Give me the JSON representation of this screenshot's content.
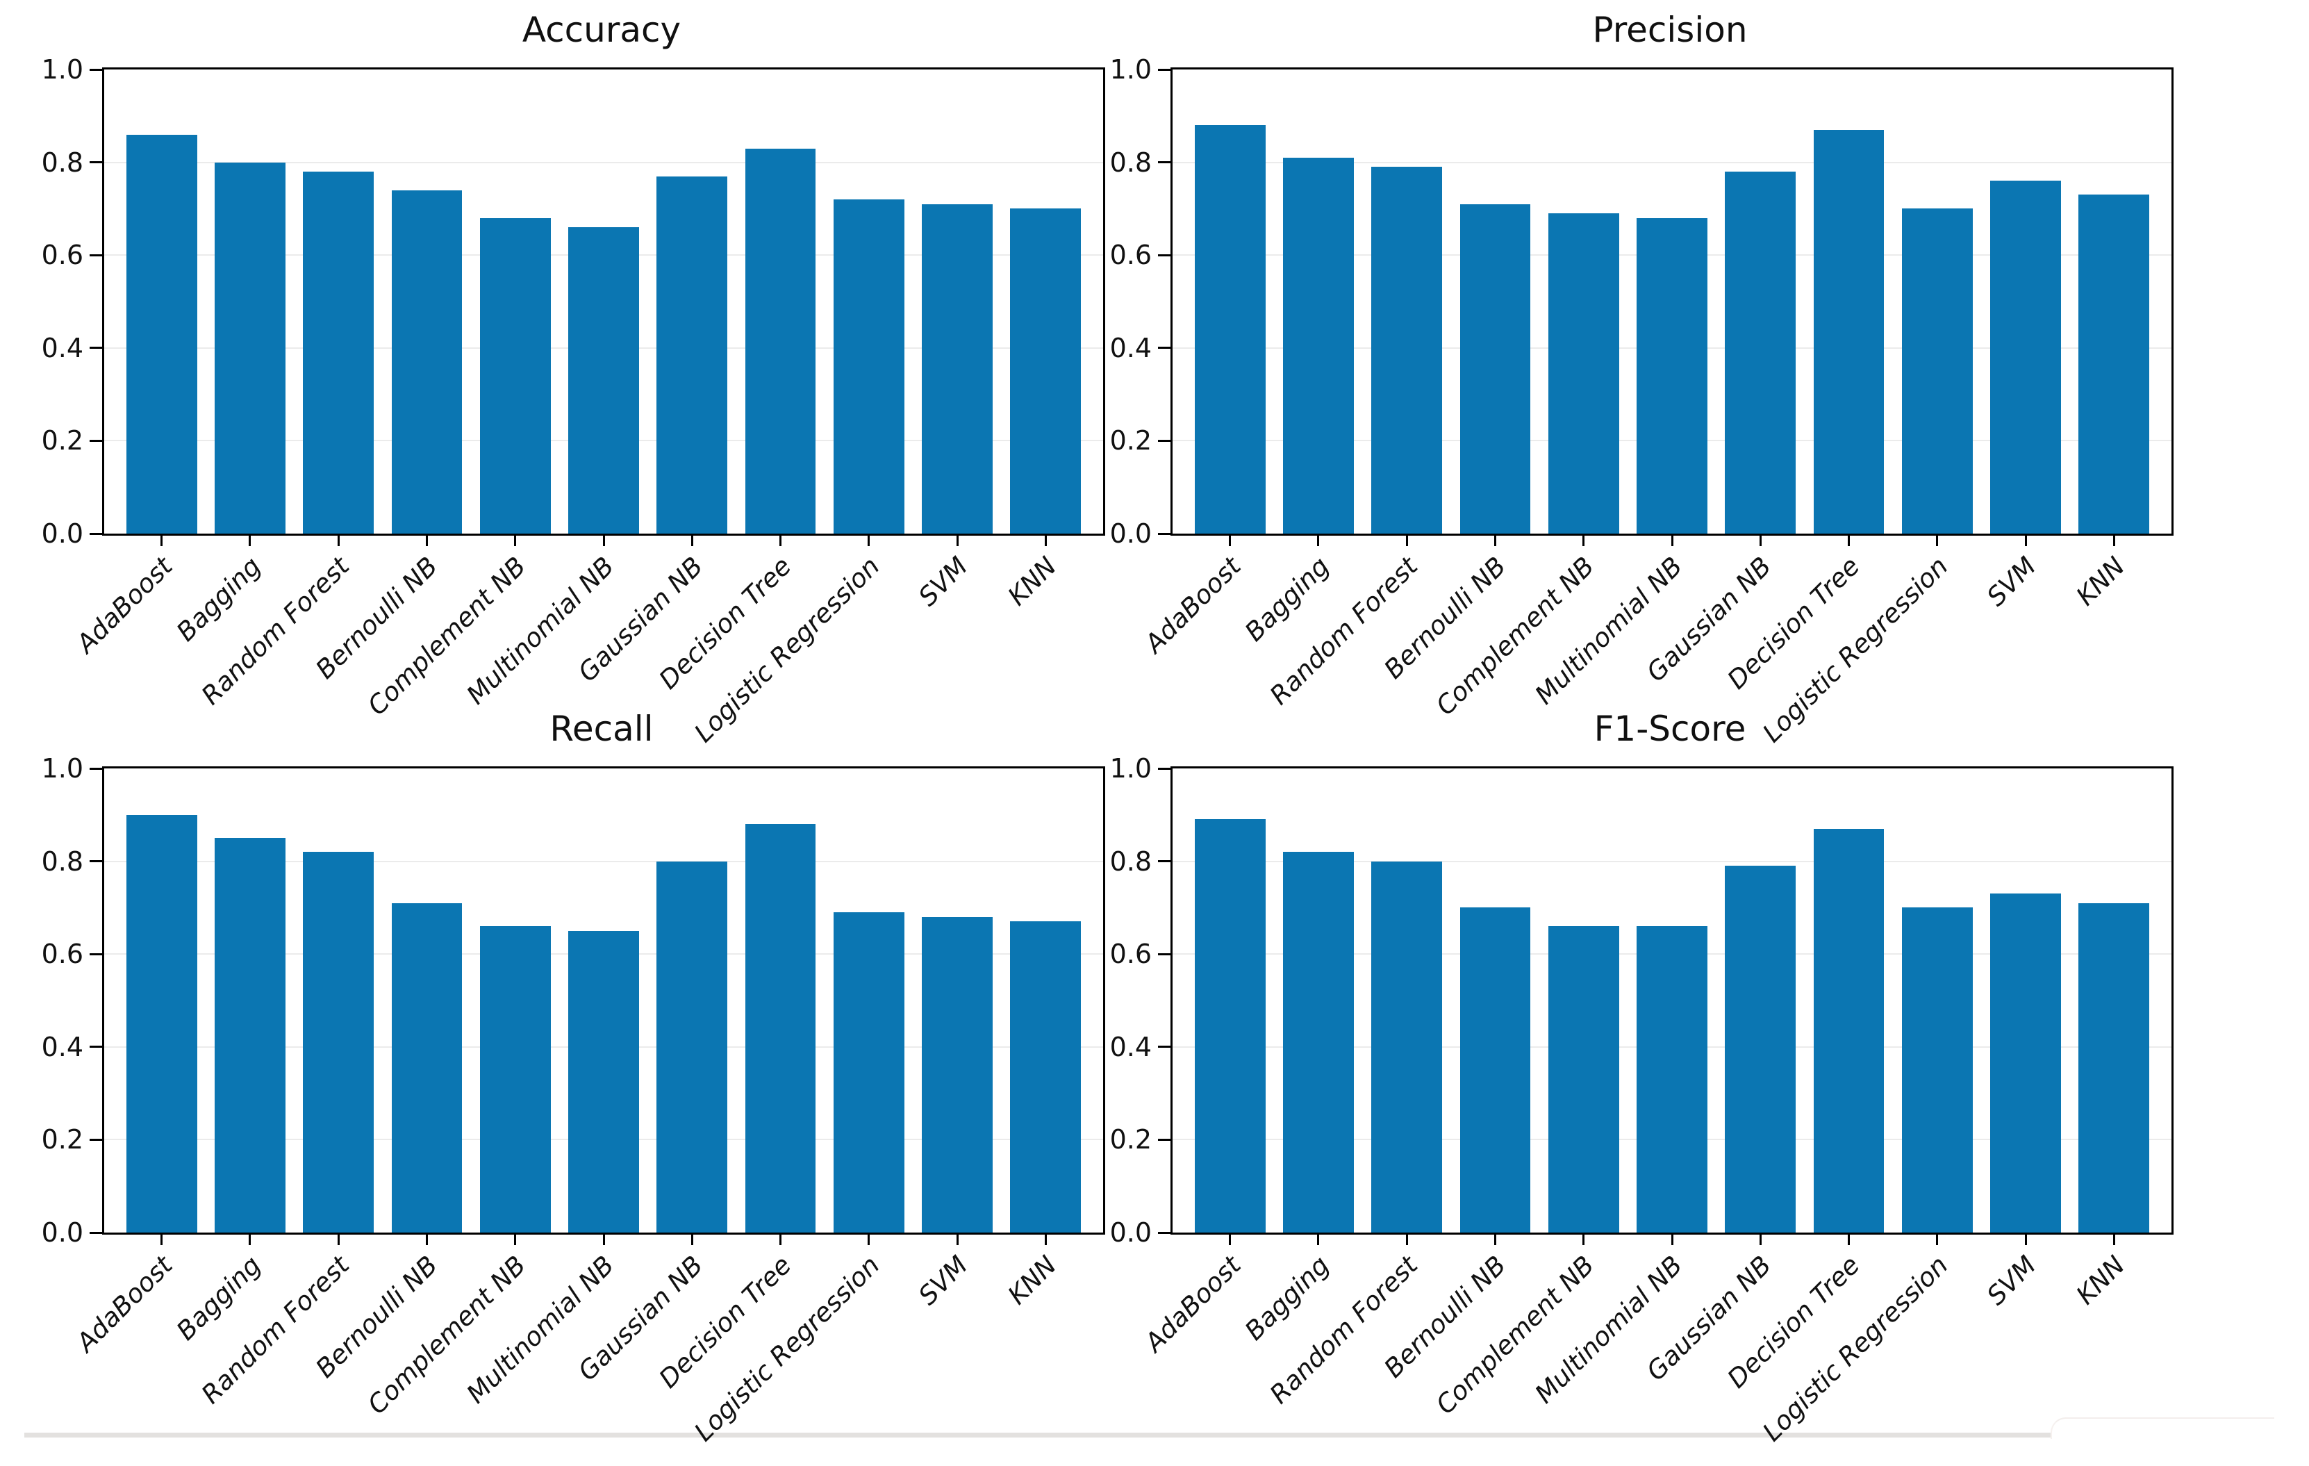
{
  "figure": {
    "background": "#ffffff",
    "description_titles": [
      "Accuracy",
      "Precision",
      "Recall",
      "F1-Score"
    ]
  },
  "colors": {
    "bar": "#0b76b2",
    "spine": "#000000",
    "gridline": "#ebebeb",
    "divider": "#e3e1df"
  },
  "chart_data": [
    {
      "type": "bar",
      "title": "Accuracy",
      "categories": [
        "AdaBoost",
        "Bagging",
        "Random Forest",
        "Bernoulli NB",
        "Complement NB",
        "Multinomial NB",
        "Gaussian NB",
        "Decision Tree",
        "Logistic Regression",
        "SVM",
        "KNN"
      ],
      "values": [
        0.86,
        0.8,
        0.78,
        0.74,
        0.68,
        0.66,
        0.77,
        0.83,
        0.72,
        0.71,
        0.7
      ],
      "xlabel": "",
      "ylabel": "",
      "ylim": [
        0.0,
        1.0
      ],
      "ytick_labels": [
        "0.0",
        "0.2",
        "0.4",
        "0.6",
        "0.8",
        "1.0"
      ],
      "grid": true,
      "legend": "none",
      "bar_color": "#0b76b2"
    },
    {
      "type": "bar",
      "title": "Precision",
      "categories": [
        "AdaBoost",
        "Bagging",
        "Random Forest",
        "Bernoulli NB",
        "Complement NB",
        "Multinomial NB",
        "Gaussian NB",
        "Decision Tree",
        "Logistic Regression",
        "SVM",
        "KNN"
      ],
      "values": [
        0.88,
        0.81,
        0.79,
        0.71,
        0.69,
        0.68,
        0.78,
        0.87,
        0.7,
        0.76,
        0.73
      ],
      "xlabel": "",
      "ylabel": "",
      "ylim": [
        0.0,
        1.0
      ],
      "ytick_labels": [
        "0.0",
        "0.2",
        "0.4",
        "0.6",
        "0.8",
        "1.0"
      ],
      "grid": true,
      "legend": "none",
      "bar_color": "#0b76b2"
    },
    {
      "type": "bar",
      "title": "Recall",
      "categories": [
        "AdaBoost",
        "Bagging",
        "Random Forest",
        "Bernoulli NB",
        "Complement NB",
        "Multinomial NB",
        "Gaussian NB",
        "Decision Tree",
        "Logistic Regression",
        "SVM",
        "KNN"
      ],
      "values": [
        0.9,
        0.85,
        0.82,
        0.71,
        0.66,
        0.65,
        0.8,
        0.88,
        0.69,
        0.68,
        0.67
      ],
      "xlabel": "",
      "ylabel": "",
      "ylim": [
        0.0,
        1.0
      ],
      "ytick_labels": [
        "0.0",
        "0.2",
        "0.4",
        "0.6",
        "0.8",
        "1.0"
      ],
      "grid": true,
      "legend": "none",
      "bar_color": "#0b76b2"
    },
    {
      "type": "bar",
      "title": "F1-Score",
      "categories": [
        "AdaBoost",
        "Bagging",
        "Random Forest",
        "Bernoulli NB",
        "Complement NB",
        "Multinomial NB",
        "Gaussian NB",
        "Decision Tree",
        "Logistic Regression",
        "SVM",
        "KNN"
      ],
      "values": [
        0.89,
        0.82,
        0.8,
        0.7,
        0.66,
        0.66,
        0.79,
        0.87,
        0.7,
        0.73,
        0.71
      ],
      "xlabel": "",
      "ylabel": "",
      "ylim": [
        0.0,
        1.0
      ],
      "ytick_labels": [
        "0.0",
        "0.2",
        "0.4",
        "0.6",
        "0.8",
        "1.0"
      ],
      "grid": true,
      "legend": "none",
      "bar_color": "#0b76b2"
    }
  ]
}
